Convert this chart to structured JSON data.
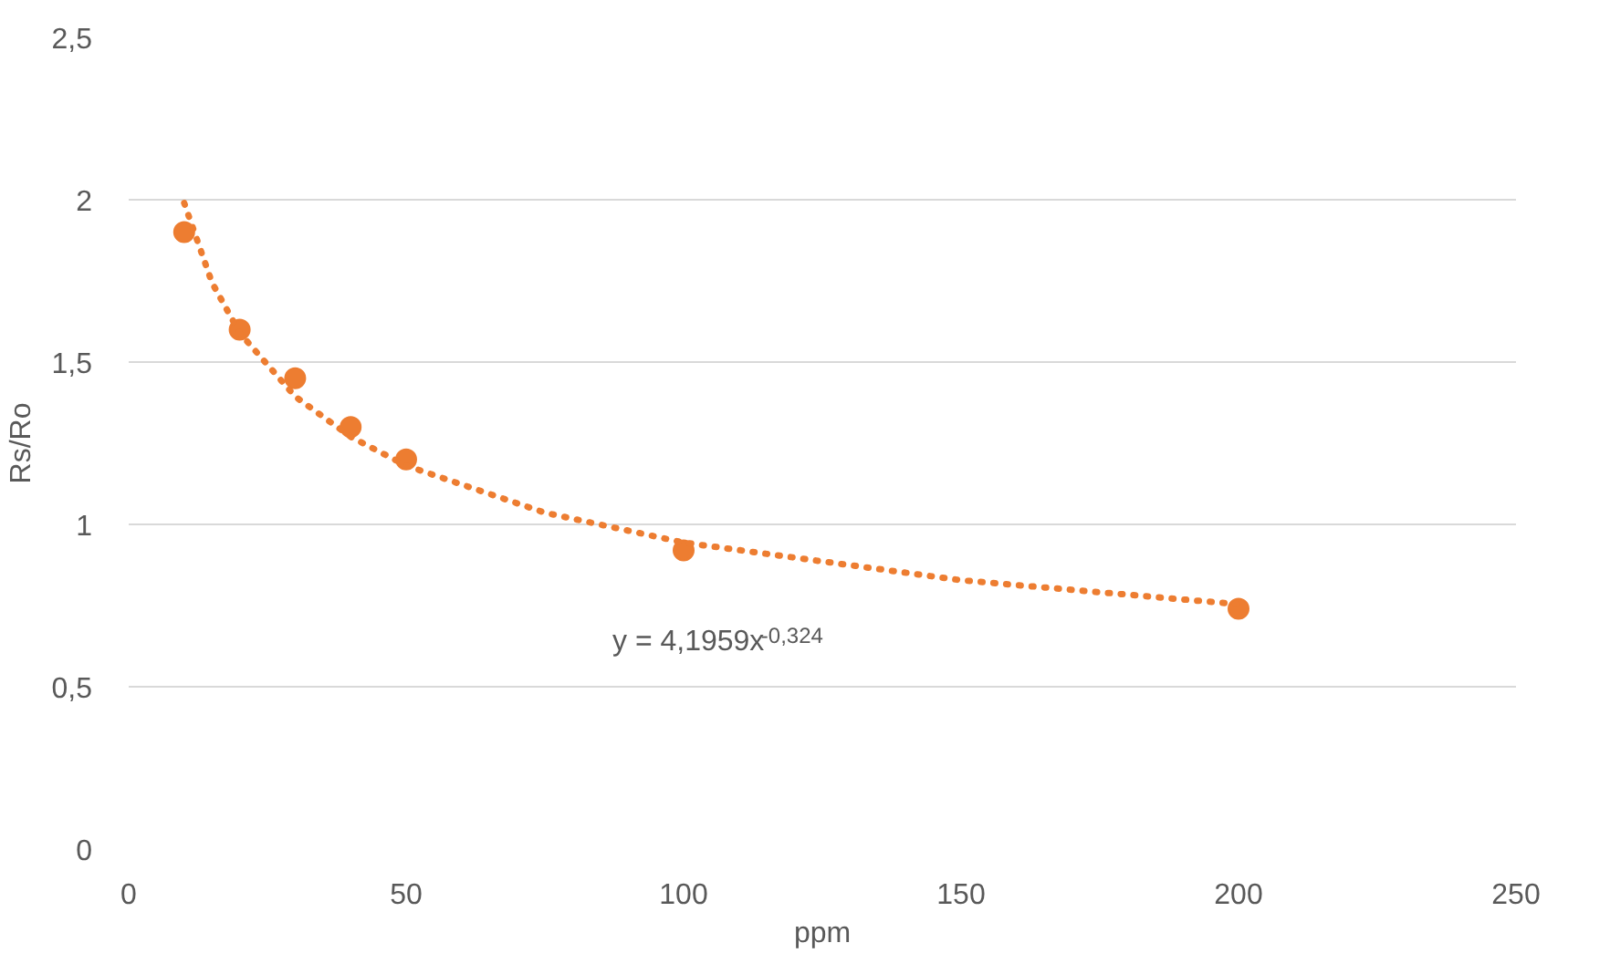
{
  "chart_data": {
    "type": "scatter",
    "xlabel": "ppm",
    "ylabel": "Rs/Ro",
    "xlim": [
      0,
      250
    ],
    "xticks": [
      0,
      50,
      100,
      150,
      200,
      250
    ],
    "ylim": [
      0,
      2.5
    ],
    "yticks": [
      0,
      {
        "value": 0.5,
        "label": "0,5"
      },
      1,
      {
        "value": 1.5,
        "label": "1,5"
      },
      2,
      {
        "value": 2.5,
        "label": "2,5"
      }
    ],
    "grid": "y",
    "marker": "circle",
    "series": [
      {
        "color": "#ed7d31",
        "x": [
          10,
          20,
          30,
          40,
          50,
          100,
          200
        ],
        "values": [
          1.9,
          1.6,
          1.45,
          1.3,
          1.2,
          0.92,
          0.74
        ]
      },
      {
        "type": "line",
        "color": "#ed7d31",
        "line_style": "dotted",
        "marker": "none",
        "x": [
          10,
          15,
          20,
          30,
          40,
          50,
          75,
          100,
          150,
          200
        ],
        "values": [
          1.99,
          1.745,
          1.59,
          1.394,
          1.27,
          1.181,
          1.036,
          0.944,
          0.828,
          0.754
        ]
      }
    ],
    "annotations": [
      "y = 4,1959x$^{-0,324}$"
    ]
  }
}
